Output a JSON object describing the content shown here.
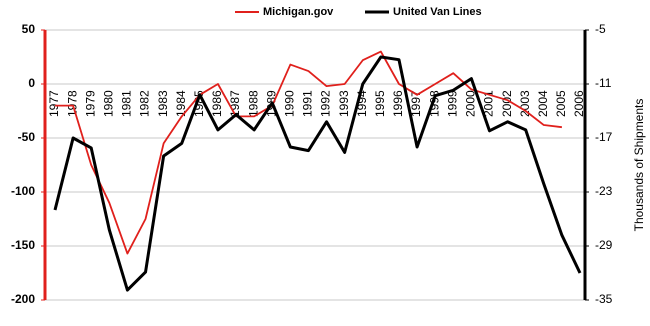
{
  "chart_data": {
    "type": "line",
    "y2label": "Thousands of Shipments",
    "categories": [
      "1977",
      "1978",
      "1979",
      "1980",
      "1981",
      "1982",
      "1983",
      "1984",
      "1985",
      "1986",
      "1987",
      "1988",
      "1989",
      "1990",
      "1991",
      "1992",
      "1993",
      "1994",
      "1995",
      "1996",
      "1997",
      "1998",
      "1999",
      "2000",
      "2001",
      "2002",
      "2003",
      "2004",
      "2005",
      "2006"
    ],
    "series": [
      {
        "name": "Michigan.gov",
        "color": "#e0201c",
        "values": [
          -20,
          -20,
          -75,
          -110,
          -157,
          -125,
          -55,
          -30,
          -10,
          0,
          -30,
          -30,
          -20,
          18,
          12,
          -2,
          0,
          22,
          30,
          0,
          -10,
          0,
          10,
          -5,
          -10,
          -15,
          -25,
          -38,
          -40,
          null
        ]
      },
      {
        "name": "United Van Lines",
        "color": "#000000",
        "axis": "y2",
        "values": [
          -25,
          -17,
          -18.1,
          -27.2,
          -33.9,
          -31.9,
          -19,
          -17.6,
          -12.2,
          -16.1,
          -14.4,
          -16.1,
          -13.1,
          -18,
          -18.4,
          -15.2,
          -18.6,
          -11,
          -8,
          -8.3,
          -18,
          -12.3,
          -11.7,
          -10.4,
          -16.2,
          -15.2,
          -16.1,
          -22.1,
          -27.8,
          -32
        ]
      }
    ],
    "ylim": [
      -200,
      50
    ],
    "yticks": [
      -200,
      -150,
      -100,
      -50,
      0,
      50
    ],
    "y2lim": [
      -35,
      -5
    ],
    "y2ticks": [
      -35,
      -29,
      -23,
      -17,
      -11,
      -5
    ],
    "grid": true
  }
}
